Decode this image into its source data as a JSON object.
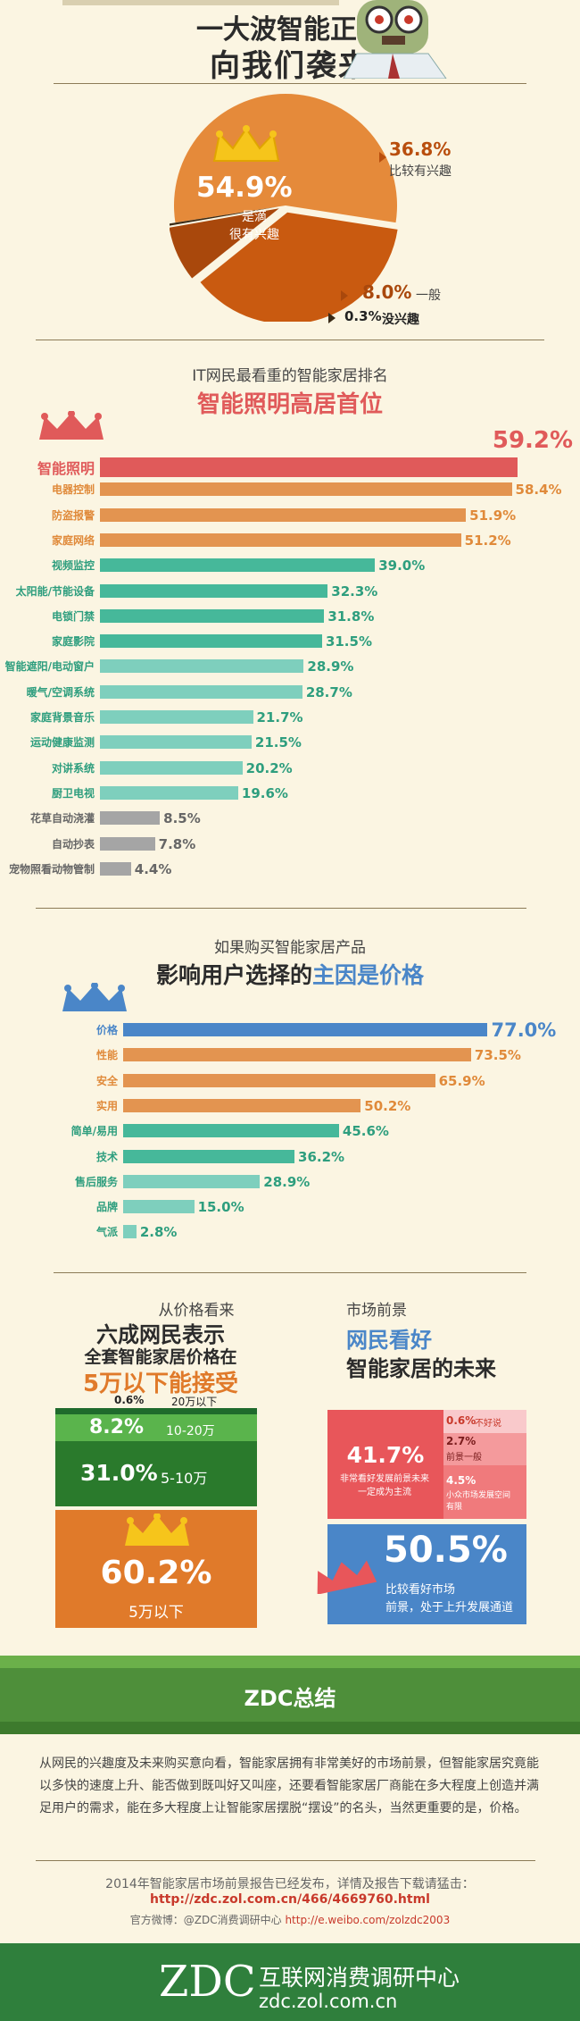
{
  "header": {
    "title_line1": "一大波智能正在",
    "title_line2": "向我们袭来"
  },
  "interest": {
    "main_pct": "54.9%",
    "main_label_1": "是滴",
    "main_label_2": "很有兴趣",
    "s2_pct": "36.8%",
    "s2_label": "比较有兴趣",
    "s3_pct": "8.0%",
    "s3_label": "一般",
    "s4_pct": "0.3%",
    "s4_label": "没兴趣"
  },
  "ranking": {
    "subtitle": "IT网民最看重的智能家居排名",
    "title": "智能照明高居首位"
  },
  "price": {
    "subtitle": "如果购买智能家居产品",
    "title_plain": "影响用户选择的",
    "title_accent": "主因是价格"
  },
  "price_view": {
    "h1": "从价格看来",
    "h2": "六成网民表示",
    "h3": "全套智能家居价格在",
    "h4": "5万以下能接受",
    "seg_top_pct": "0.6%",
    "seg_top_label": "20万以下",
    "seg2_pct": "8.2%",
    "seg2_label": "10-20万",
    "seg3_pct": "31.0%",
    "seg3_label": "5-10万",
    "seg4_pct": "60.2%",
    "seg4_label": "5万以下"
  },
  "future": {
    "h1": "市场前景",
    "h2": "网民看好",
    "h3": "智能家居的未来",
    "big_pct": "41.7%",
    "big_label": "非常看好发展前景未来一定成为主流",
    "c1_pct": "0.6%",
    "c1_label": "不好说",
    "c2_pct": "2.7%",
    "c2_label": "前景一般",
    "c3_pct": "4.5%",
    "c3_label": "小众市场发展空间有限",
    "bottom_pct": "50.5%",
    "bottom_label1": "比较看好市场",
    "bottom_label2": "前景，处于上升发展通道"
  },
  "summary": {
    "banner": "ZDC总结",
    "body": "从网民的兴趣度及未来购买意向看，智能家居拥有非常美好的市场前景，但智能家居究竟能以多快的速度上升、能否做到既叫好又叫座，还要看智能家居厂商能在多大程度上创造并满足用户的需求，能在多大程度上让智能家居摆脱“摆设”的名头，当然更重要的是，价格。",
    "report_line": "2014年智能家居市场前景报告已经发布，详情及报告下载请猛击：",
    "report_url": "http://zdc.zol.com.cn/466/4669760.html",
    "weibo_prefix": "官方微博：@ZDC消费调研中心",
    "weibo_url": "http://e.weibo.com/zolzdc2003"
  },
  "footer": {
    "logo": "ZDC",
    "name": "互联网消费调研中心",
    "domain": "zdc.zol.com.cn"
  },
  "chart_data": [
    {
      "type": "pie",
      "categories": [
        "很有兴趣",
        "比较有兴趣",
        "一般",
        "没兴趣"
      ],
      "values": [
        54.9,
        36.8,
        8.0,
        0.3
      ],
      "colors": [
        "#e58a3a",
        "#c95a10",
        "#a9480c",
        "#3a2a16"
      ]
    },
    {
      "type": "bar",
      "title": "智能照明高居首位",
      "categories": [
        "智能照明",
        "电器控制",
        "防盗报警",
        "家庭网络",
        "视频监控",
        "太阳能/节能设备",
        "电锁门禁",
        "家庭影院",
        "智能遮阳/电动窗户",
        "暖气/空调系统",
        "家庭背景音乐",
        "运动健康监测",
        "对讲系统",
        "厨卫电视",
        "花草自动浇灌",
        "自动抄表",
        "宠物照看动物管制"
      ],
      "values": [
        59.2,
        58.4,
        51.9,
        51.2,
        39.0,
        32.3,
        31.8,
        31.5,
        28.9,
        28.7,
        21.7,
        21.5,
        20.2,
        19.6,
        8.5,
        7.8,
        4.4
      ],
      "labels": [
        "59.2%",
        "58.4%",
        "51.9%",
        "51.2%",
        "39.0%",
        "32.3%",
        "31.8%",
        "31.5%",
        "28.9%",
        "28.7%",
        "21.7%",
        "21.5%",
        "20.2%",
        "19.6%",
        "8.5%",
        "7.8%",
        "4.4%"
      ],
      "colors": [
        "#e05a5a",
        "#e39450",
        "#e39450",
        "#e39450",
        "#46b89a",
        "#46b89a",
        "#46b89a",
        "#46b89a",
        "#7ecfbd",
        "#7ecfbd",
        "#7ecfbd",
        "#7ecfbd",
        "#7ecfbd",
        "#7ecfbd",
        "#a5a5a5",
        "#a5a5a5",
        "#a5a5a5"
      ],
      "label_colors": [
        "#e05a5a",
        "#e08a3a",
        "#e08a3a",
        "#e08a3a",
        "#2e9e7e",
        "#2e9e7e",
        "#2e9e7e",
        "#2e9e7e",
        "#2e9e7e",
        "#2e9e7e",
        "#2e9e7e",
        "#2e9e7e",
        "#2e9e7e",
        "#2e9e7e",
        "#666666",
        "#666666",
        "#666666"
      ],
      "xlim": [
        0,
        62
      ]
    },
    {
      "type": "bar",
      "categories": [
        "价格",
        "性能",
        "安全",
        "实用",
        "简单/易用",
        "技术",
        "售后服务",
        "品牌",
        "气派"
      ],
      "values": [
        77.0,
        73.5,
        65.9,
        50.2,
        45.6,
        36.2,
        28.9,
        15.0,
        2.8
      ],
      "labels": [
        "77.0%",
        "73.5%",
        "65.9%",
        "50.2%",
        "45.6%",
        "36.2%",
        "28.9%",
        "15.0%",
        "2.8%"
      ],
      "colors": [
        "#4a86c8",
        "#e39450",
        "#e39450",
        "#e39450",
        "#46b89a",
        "#46b89a",
        "#7ecfbd",
        "#7ecfbd",
        "#7ecfbd"
      ],
      "label_colors": [
        "#4a86c8",
        "#e08a3a",
        "#e08a3a",
        "#e08a3a",
        "#2e9e7e",
        "#2e9e7e",
        "#2e9e7e",
        "#2e9e7e",
        "#2e9e7e"
      ],
      "xlim": [
        0,
        82
      ]
    }
  ]
}
